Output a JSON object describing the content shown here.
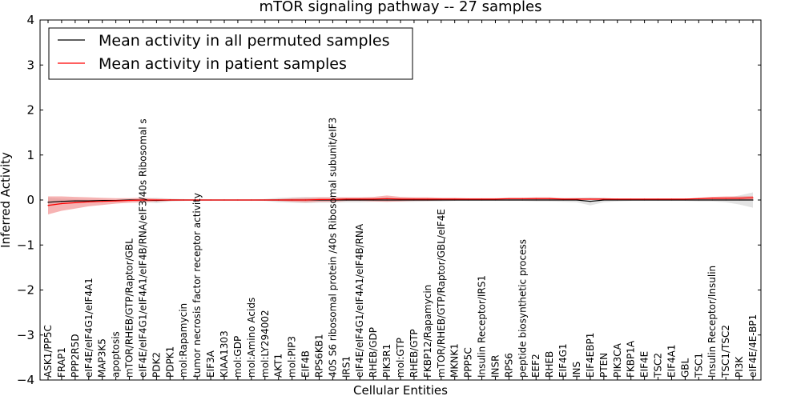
{
  "chart_data": {
    "type": "line",
    "title": "mTOR signaling pathway -- 27 samples",
    "xlabel": "Cellular Entities",
    "ylabel": "Inferred Activity",
    "ylim": [
      -4,
      4
    ],
    "yticks": [
      -4,
      -3,
      -2,
      -1,
      0,
      1,
      2,
      3,
      4
    ],
    "ytick_labels": [
      "−4",
      "−3",
      "−2",
      "−1",
      "0",
      "1",
      "2",
      "3",
      "4"
    ],
    "legend_position": "top-left",
    "categories": [
      "ASK1/PP5C",
      "FRAP1",
      "PPP2R5D",
      "eIF4E/eIF4G1/eIF4A1",
      "MAP3K5",
      "apoptosis",
      "mTOR/RHEB/GTP/Raptor/GBL",
      "eIF4E/eIF4G1/eIF4A1/eIF4B/RNA/eIF3/40s Ribosomal s",
      "PDK2",
      "PDPK1",
      "mol:Rapamycin",
      "tumor necrosis factor receptor activity",
      "EIF3A",
      "KIAA1303",
      "mol:GDP",
      "mol:Amino Acids",
      "mol:LY294002",
      "AKT1",
      "mol:PIP3",
      "EIF4B",
      "RPS6KB1",
      "40S S6 ribosomal protein /40s Ribosomal subunit/eIF3",
      "IRS1",
      "eIF4E/eIF4G1/eIF4A1/eIF4B/RNA",
      "RHEB/GDP",
      "PIK3R1",
      "mol:GTP",
      "RHEB/GTP",
      "FKBP12/Rapamycin",
      "mTOR/RHEB/GTP/Raptor/GBL/eIF4E",
      "MKNK1",
      "PPP5C",
      "Insulin Receptor/IRS1",
      "INSR",
      "RPS6",
      "peptide biosynthetic process",
      "EEF2",
      "RHEB",
      "EIF4G1",
      "INS",
      "EIF4EBP1",
      "PTEN",
      "PIK3CA",
      "FKBP1A",
      "EIF4E",
      "TSC2",
      "EIF4A1",
      "GBL",
      "TSC1",
      "Insulin Receptor/Insulin",
      "TSC1/TSC2",
      "PI3K",
      "eIF4E/4E-BP1"
    ],
    "series": [
      {
        "name": "Mean activity in all permuted samples",
        "color": "#000000",
        "band_color": "#cccccc",
        "values": [
          -0.05,
          -0.03,
          -0.02,
          -0.02,
          -0.01,
          -0.01,
          0,
          0,
          -0.01,
          0,
          0,
          0,
          0,
          0,
          0,
          0,
          0,
          0,
          0,
          0,
          0,
          0,
          0,
          0,
          0,
          0,
          0,
          0,
          0,
          0,
          0,
          0,
          0,
          0,
          0,
          0,
          0,
          0,
          0,
          0,
          -0.03,
          0,
          0,
          0,
          0,
          0,
          0,
          0,
          0,
          0,
          0,
          0,
          0
        ],
        "band": [
          0.1,
          0.06,
          0.04,
          0.03,
          0.02,
          0.02,
          0.02,
          0.04,
          0.06,
          0.03,
          0.02,
          0.01,
          0.01,
          0.01,
          0.01,
          0.01,
          0.02,
          0.05,
          0.06,
          0.07,
          0.06,
          0.06,
          0.05,
          0.05,
          0.04,
          0.04,
          0.04,
          0.04,
          0.03,
          0.03,
          0.02,
          0.02,
          0.02,
          0.02,
          0.02,
          0.02,
          0.03,
          0.03,
          0.04,
          0.05,
          0.09,
          0.05,
          0.03,
          0.02,
          0.02,
          0.02,
          0.02,
          0.02,
          0.03,
          0.03,
          0.05,
          0.1,
          0.17
        ]
      },
      {
        "name": "Mean activity in patient samples",
        "color": "#ff0000",
        "band_color": "#f08080",
        "values": [
          -0.12,
          -0.08,
          -0.06,
          -0.04,
          -0.03,
          -0.02,
          -0.01,
          0,
          0,
          0,
          0,
          0,
          0,
          0,
          0,
          0,
          0,
          0,
          0,
          0,
          0.01,
          0.01,
          0.02,
          0.02,
          0.02,
          0.03,
          0.02,
          0.02,
          0.02,
          0.02,
          0.02,
          0.02,
          0.02,
          0.02,
          0.03,
          0.03,
          0.03,
          0.03,
          0.02,
          0.02,
          0.02,
          0.02,
          0.02,
          0.02,
          0.02,
          0.02,
          0.02,
          0.02,
          0.03,
          0.04,
          0.04,
          0.04,
          0.05
        ],
        "band": [
          0.2,
          0.16,
          0.13,
          0.1,
          0.08,
          0.06,
          0.05,
          0.05,
          0.03,
          0.02,
          0.01,
          0.01,
          0.01,
          0.01,
          0.01,
          0.01,
          0.01,
          0.02,
          0.04,
          0.05,
          0.05,
          0.05,
          0.04,
          0.04,
          0.05,
          0.07,
          0.05,
          0.04,
          0.04,
          0.03,
          0.03,
          0.02,
          0.02,
          0.02,
          0.02,
          0.02,
          0.03,
          0.03,
          0.02,
          0.02,
          0.02,
          0.02,
          0.01,
          0.01,
          0.01,
          0.01,
          0.01,
          0.01,
          0.02,
          0.03,
          0.04,
          0.04,
          0.04
        ]
      }
    ]
  }
}
